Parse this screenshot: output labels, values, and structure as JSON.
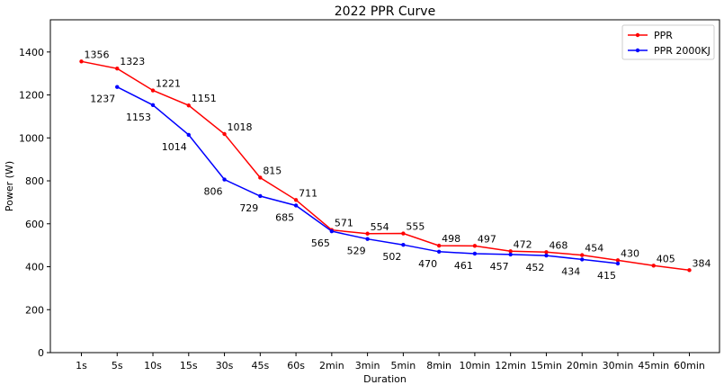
{
  "chart_data": {
    "type": "line",
    "title": "2022 PPR Curve",
    "xlabel": "Duration",
    "ylabel": "Power (W)",
    "categories": [
      "1s",
      "5s",
      "10s",
      "15s",
      "30s",
      "45s",
      "60s",
      "2min",
      "3min",
      "5min",
      "8min",
      "10min",
      "12min",
      "15min",
      "20min",
      "30min",
      "45min",
      "60min"
    ],
    "ylim": [
      0,
      1550
    ],
    "yticks": [
      0,
      200,
      400,
      600,
      800,
      1000,
      1200,
      1400
    ],
    "legend_position": "top-right",
    "series": [
      {
        "name": "PPR",
        "color": "#ff0000",
        "values": [
          1356,
          1323,
          1221,
          1151,
          1018,
          815,
          711,
          571,
          554,
          555,
          498,
          497,
          472,
          468,
          454,
          430,
          405,
          384
        ],
        "label_placement": "above"
      },
      {
        "name": "PPR 2000KJ",
        "color": "#0000ff",
        "values": [
          null,
          1237,
          1153,
          1014,
          806,
          729,
          685,
          565,
          529,
          502,
          470,
          461,
          457,
          452,
          434,
          415,
          null,
          null
        ],
        "label_placement": "below"
      }
    ]
  }
}
